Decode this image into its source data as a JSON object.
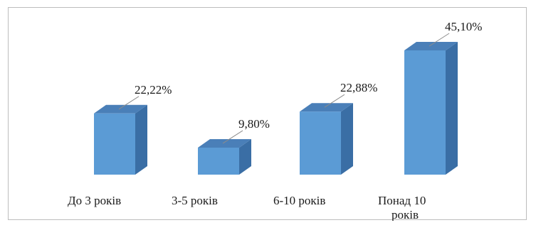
{
  "chart_data": {
    "type": "bar",
    "style": "3d-column",
    "categories": [
      [
        "До 3 років"
      ],
      [
        "3-5 років"
      ],
      [
        "6-10 років"
      ],
      [
        "Понад 10",
        "років"
      ]
    ],
    "values": [
      22.22,
      9.8,
      22.88,
      45.1
    ],
    "data_labels": [
      "22,22%",
      "9,80%",
      "22,88%",
      "45,10%"
    ],
    "ylim": [
      0,
      45.1
    ],
    "grid": false,
    "legend": "none",
    "colors": {
      "front": "#5b9bd5",
      "top": "#4a7fb8",
      "side": "#3a6ea5"
    }
  }
}
